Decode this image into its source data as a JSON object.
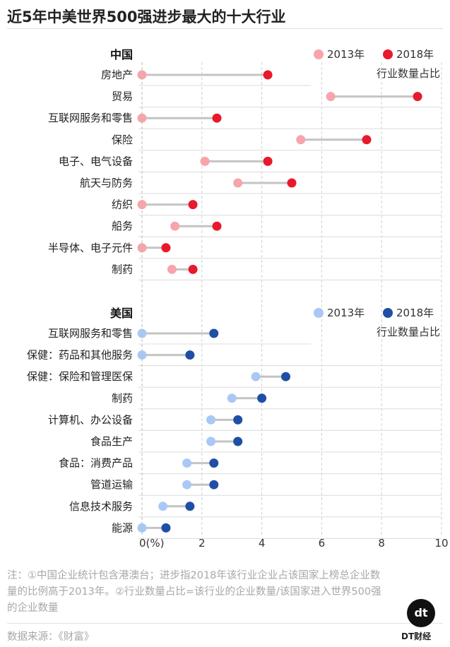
{
  "title": "近5年中美世界500强进步最大的十大行业",
  "chart_data": {
    "type": "dumbbell",
    "x_range": [
      0,
      10
    ],
    "x_ticks": [
      "0(%)",
      "2",
      "4",
      "6",
      "8",
      "10"
    ],
    "x_tick_values": [
      0,
      2,
      4,
      6,
      8,
      10
    ],
    "measure_label": "行业数量占比",
    "panels": [
      {
        "name": "中国",
        "legend": [
          "2013年",
          "2018年"
        ],
        "colors": {
          "y2013": "#f7a4ab",
          "y2018": "#e8192c"
        },
        "categories": [
          "房地产",
          "贸易",
          "互联网服务和零售",
          "保险",
          "电子、电气设备",
          "航天与防务",
          "纺织",
          "船务",
          "半导体、电子元件",
          "制药"
        ],
        "y2013": [
          0.0,
          6.3,
          0.0,
          5.3,
          2.1,
          3.2,
          0.0,
          1.1,
          0.0,
          1.0
        ],
        "y2018": [
          4.2,
          9.2,
          2.5,
          7.5,
          4.2,
          5.0,
          1.7,
          2.5,
          0.8,
          1.7
        ]
      },
      {
        "name": "美国",
        "legend": [
          "2013年",
          "2018年"
        ],
        "colors": {
          "y2013": "#a9c8f5",
          "y2018": "#1f4fa4"
        },
        "categories": [
          "互联网服务和零售",
          "保健：药品和其他服务",
          "保健：保险和管理医保",
          "制药",
          "计算机、办公设备",
          "食品生产",
          "食品：消费产品",
          "管道运输",
          "信息技术服务",
          "能源"
        ],
        "y2013": [
          0.0,
          0.0,
          3.8,
          3.0,
          2.3,
          2.3,
          1.5,
          1.5,
          0.7,
          0.0
        ],
        "y2018": [
          2.4,
          1.6,
          4.8,
          4.0,
          3.2,
          3.2,
          2.4,
          2.4,
          1.6,
          0.8
        ]
      }
    ]
  },
  "note": "注：①中国企业统计包含港澳台；进步指2018年该行业企业占该国家上榜总企业数量的比例高于2013年。②行业数量占比=该行业的企业数量/该国家进入世界500强的企业数量",
  "source": "数据来源：《财富》",
  "logo": {
    "mark": "dt",
    "text": "DT财经"
  },
  "colors": {
    "line": "#c4c4c4",
    "grid": "#d0d0d0",
    "text": "#333333"
  }
}
